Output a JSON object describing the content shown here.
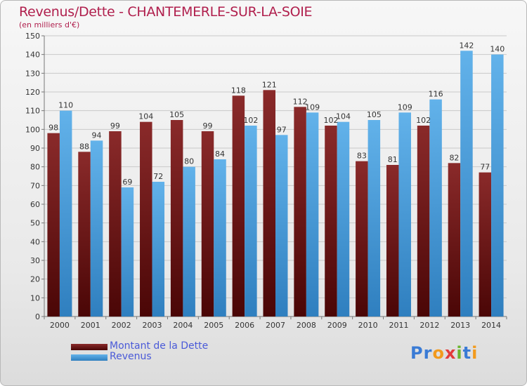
{
  "title": "Revenus/Dette - CHANTEMERLE-SUR-LA-SOIE",
  "subtitle": "(en milliers d'€)",
  "logo": {
    "text": "Proxiti",
    "letters": [
      "P",
      "r",
      "o",
      "x",
      "i",
      "t",
      "i"
    ],
    "colors": [
      "#3a7bd5",
      "#3a7bd5",
      "#f29a1d",
      "#e23b3b",
      "#6ab52e",
      "#3a7bd5",
      "#f29a1d"
    ]
  },
  "colors": {
    "dette": "#7f1d1d",
    "dette_dark": "#4a0707",
    "revenus": "#5aabe6",
    "revenus_dark": "#2f7fbf",
    "title": "#b01f4d",
    "legend_text": "#4a5ad8"
  },
  "chart_data": {
    "type": "bar",
    "title": "Revenus/Dette - CHANTEMERLE-SUR-LA-SOIE",
    "ylabel": "(en milliers d'€)",
    "categories": [
      "2000",
      "2001",
      "2002",
      "2003",
      "2004",
      "2005",
      "2006",
      "2007",
      "2008",
      "2009",
      "2010",
      "2011",
      "2012",
      "2013",
      "2014"
    ],
    "series": [
      {
        "name": "Montant de la Dette",
        "values": [
          98,
          88,
          99,
          104,
          105,
          99,
          118,
          121,
          112,
          102,
          83,
          81,
          102,
          82,
          77
        ]
      },
      {
        "name": "Revenus",
        "values": [
          110,
          94,
          69,
          72,
          80,
          84,
          102,
          97,
          109,
          104,
          105,
          109,
          116,
          142,
          140
        ]
      }
    ],
    "ylim": [
      0,
      150
    ],
    "yticks": [
      0,
      10,
      20,
      30,
      40,
      50,
      60,
      70,
      80,
      90,
      100,
      110,
      120,
      130,
      140,
      150
    ],
    "grid": true,
    "legend": "bottom-left"
  }
}
